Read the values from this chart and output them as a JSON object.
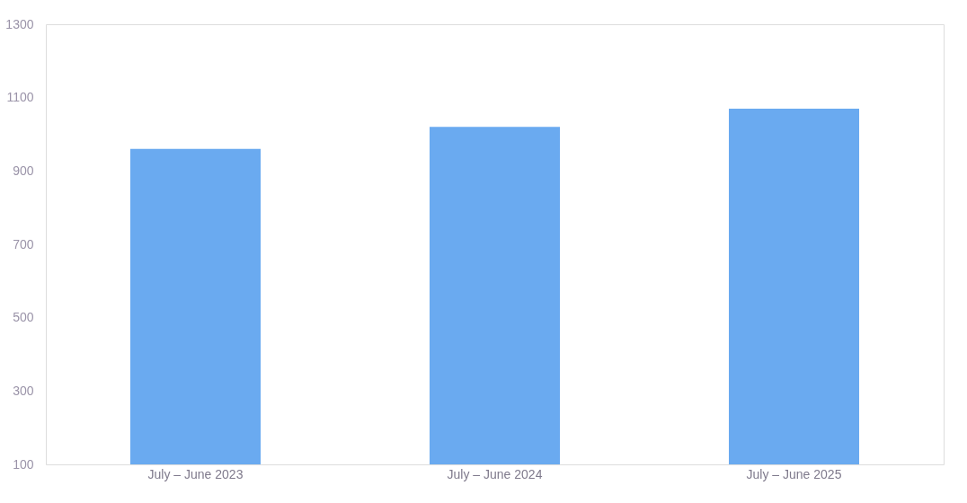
{
  "chart_data": {
    "type": "bar",
    "categories": [
      "July – June 2023",
      "July – June 2024",
      "July – June 2025"
    ],
    "values": [
      960,
      1020,
      1070
    ],
    "color": "#6aaaf0",
    "ylim": [
      100,
      1300
    ],
    "yticks": [
      100,
      300,
      500,
      700,
      900,
      1100,
      1300
    ],
    "grid": false
  }
}
